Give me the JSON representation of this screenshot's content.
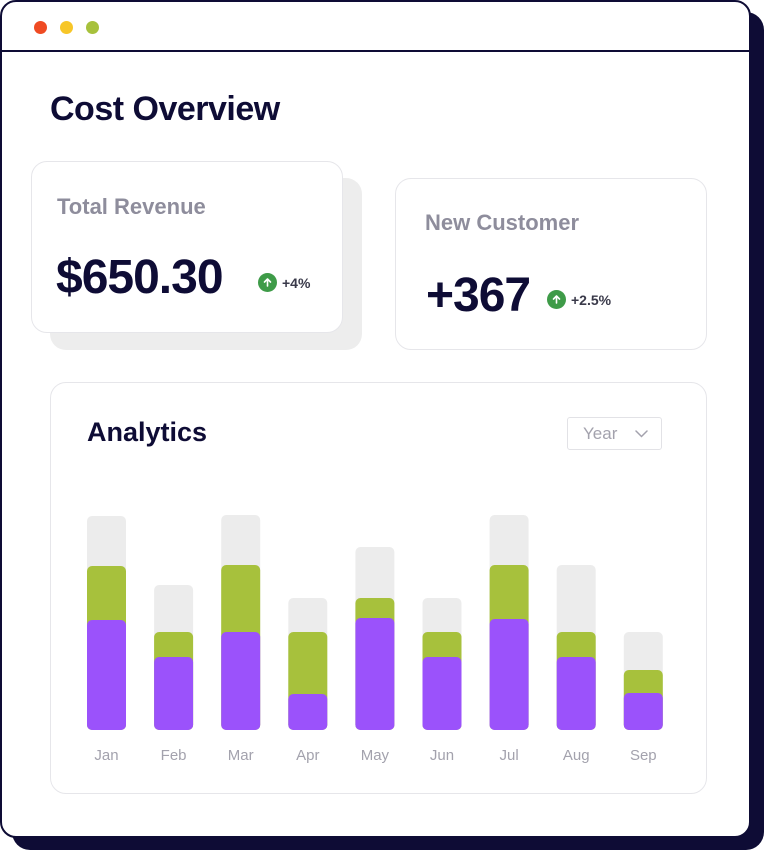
{
  "window": {
    "controls": [
      {
        "name": "close",
        "color": "#ef4b23"
      },
      {
        "name": "minimize",
        "color": "#f7c628"
      },
      {
        "name": "maximize",
        "color": "#a7c13c"
      }
    ]
  },
  "page": {
    "title": "Cost Overview"
  },
  "cards": {
    "revenue": {
      "label": "Total Revenue",
      "value": "$650.30",
      "change": "+4%"
    },
    "customers": {
      "label": "New Customer",
      "value": "+367",
      "change": "+2.5%"
    }
  },
  "analytics": {
    "title": "Analytics",
    "period": "Year"
  },
  "colors": {
    "purple": "#9b52fb",
    "green": "#a7c13c",
    "track": "#ececec",
    "positive": "#3e9b48"
  },
  "chart_data": {
    "type": "bar",
    "stacked": true,
    "categories": [
      "Jan",
      "Feb",
      "Mar",
      "Apr",
      "May",
      "Jun",
      "Jul",
      "Aug",
      "Sep"
    ],
    "series": [
      {
        "name": "purple",
        "values": [
          110,
          73,
          98,
          36,
          112,
          73,
          111,
          73,
          37
        ]
      },
      {
        "name": "green",
        "values": [
          54,
          25,
          67,
          62,
          20,
          25,
          54,
          25,
          23
        ]
      },
      {
        "name": "grey",
        "values": [
          50,
          47,
          50,
          34,
          51,
          34,
          50,
          67,
          38
        ]
      }
    ],
    "ylim": [
      0,
      214
    ],
    "xlabel": "",
    "ylabel": ""
  }
}
